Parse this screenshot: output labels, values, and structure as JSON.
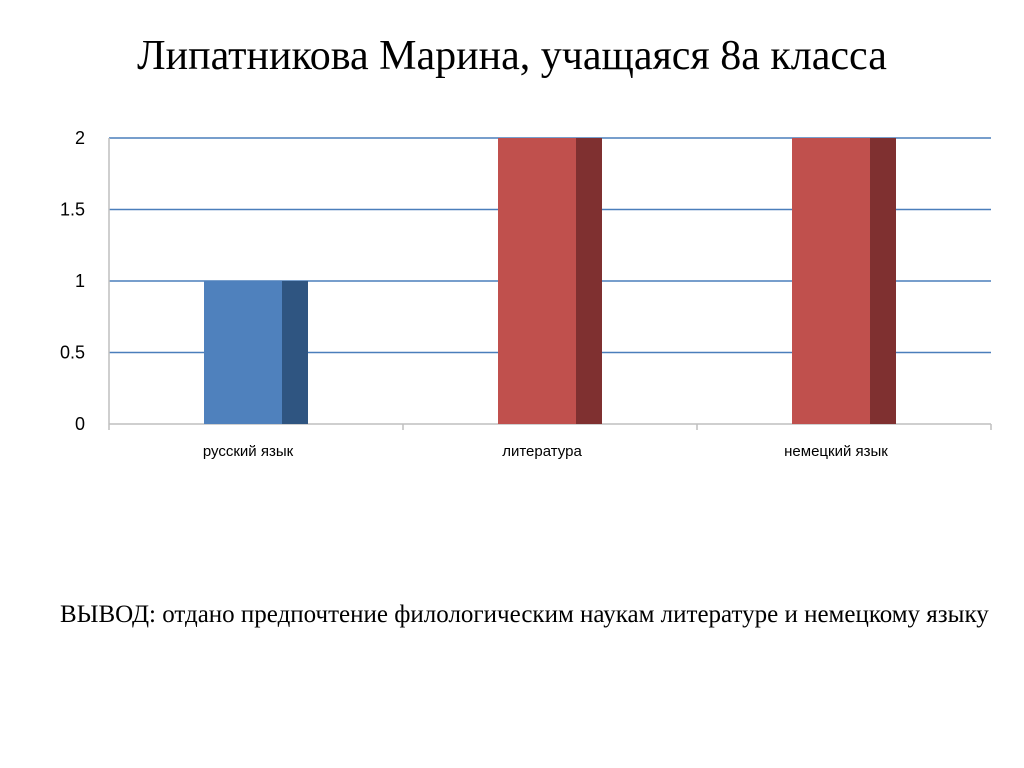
{
  "slide": {
    "title": "Липатникова Марина, учащаяся 8а  класса",
    "conclusion": "ВЫВОД: отдано предпочтение филологическим наукам литературе и немецкому языку"
  },
  "chart_data": {
    "type": "bar",
    "style": "3d-column",
    "categories": [
      "русский язык",
      "литература",
      "немецкий язык"
    ],
    "values": [
      1,
      2,
      2
    ],
    "bar_colors": [
      "#4F81BD",
      "#C0504D",
      "#C0504D"
    ],
    "bar_side_colors": [
      "#2F5581",
      "#7F3030",
      "#7F3030"
    ],
    "ylim": [
      0,
      2
    ],
    "yticks": [
      "0",
      "0.5",
      "1",
      "1.5",
      "2"
    ],
    "grid": true,
    "grid_color": "#4A7EBB",
    "legend": "none",
    "title": "",
    "xlabel": "",
    "ylabel": ""
  }
}
